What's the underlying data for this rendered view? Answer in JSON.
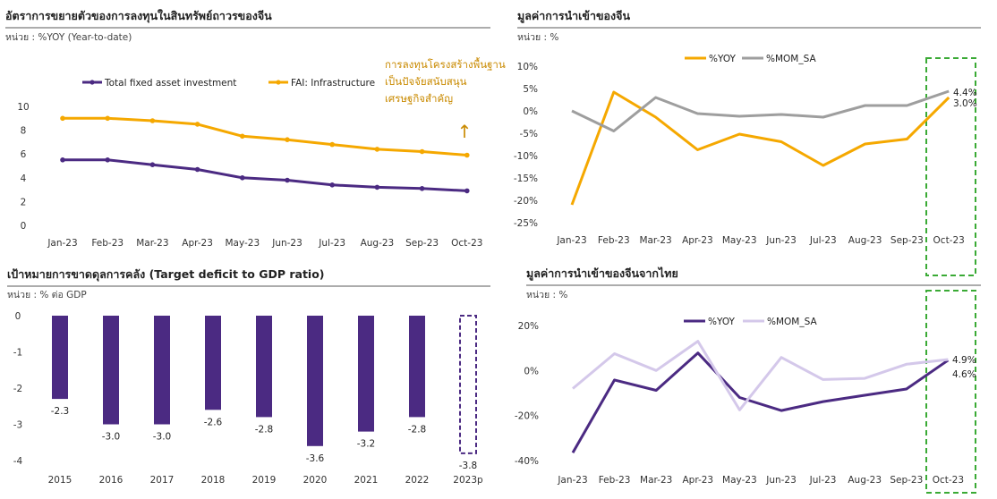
{
  "colors": {
    "purple": "#4b2a82",
    "orange": "#f5a800",
    "gray": "#9e9e9e",
    "lavender": "#d4c8ea",
    "green_highlight": "#3aaa35",
    "annotation": "#c98a00"
  },
  "chart_data": [
    {
      "id": "fai",
      "type": "line",
      "title": "อัตราการขยายตัวของการลงทุนในสินทรัพย์ถาวรของจีน",
      "unit_label": "หน่วย : %YOY (Year-to-date)",
      "categories": [
        "Jan-23",
        "Feb-23",
        "Mar-23",
        "Apr-23",
        "May-23",
        "Jun-23",
        "Jul-23",
        "Aug-23",
        "Sep-23",
        "Oct-23"
      ],
      "ylim": [
        0,
        10
      ],
      "yticks": [
        "0",
        "2",
        "4",
        "6",
        "8",
        "10"
      ],
      "series": [
        {
          "name": "Total fixed asset investment",
          "color": "#4b2a82",
          "values": [
            5.5,
            5.5,
            5.1,
            4.7,
            4.0,
            3.8,
            3.4,
            3.2,
            3.1,
            2.9
          ]
        },
        {
          "name": "FAI: Infrastructure",
          "color": "#f5a800",
          "values": [
            9.0,
            9.0,
            8.8,
            8.5,
            7.5,
            7.2,
            6.8,
            6.4,
            6.2,
            5.9
          ]
        }
      ],
      "annotation": [
        "การลงทุนโครงสร้างพื้นฐาน",
        "เป็นปัจจัยสนับสนุน",
        "เศรษฐกิจสำคัญ"
      ],
      "arrow": "↑",
      "legend": "top",
      "grid": false
    },
    {
      "id": "imports",
      "type": "line",
      "title": "มูลค่าการนำเข้าของจีน",
      "unit_label": "หน่วย : %",
      "categories": [
        "Jan-23",
        "Feb-23",
        "Mar-23",
        "Apr-23",
        "May-23",
        "Jun-23",
        "Jul-23",
        "Aug-23",
        "Sep-23",
        "Oct-23"
      ],
      "ylim": [
        -25,
        10
      ],
      "yticks": [
        "-25%",
        "-20%",
        "-15%",
        "-10%",
        "-5%",
        "0%",
        "5%",
        "10%"
      ],
      "series": [
        {
          "name": "%YOY",
          "color": "#f5a800",
          "values": [
            -21.0,
            4.2,
            -1.4,
            -8.7,
            -5.2,
            -6.9,
            -12.2,
            -7.4,
            -6.3,
            3.0
          ]
        },
        {
          "name": "%MOM_SA",
          "color": "#9e9e9e",
          "values": [
            0.0,
            -4.5,
            3.0,
            -0.6,
            -1.2,
            -0.8,
            -1.4,
            1.2,
            1.2,
            4.4
          ]
        }
      ],
      "end_labels": [
        "4.4%",
        "3.0%"
      ],
      "legend": "top",
      "grid": false
    },
    {
      "id": "deficit",
      "type": "bar",
      "title": "เป้าหมายการขาดดุลการคลัง (Target deficit to GDP ratio)",
      "unit_label": "หน่วย : % ต่อ GDP",
      "categories": [
        "2015",
        "2016",
        "2017",
        "2018",
        "2019",
        "2020",
        "2021",
        "2022",
        "2023p"
      ],
      "values": [
        -2.3,
        -3.0,
        -3.0,
        -2.6,
        -2.8,
        -3.6,
        -3.2,
        -2.8,
        -3.8
      ],
      "value_labels": [
        "-2.3",
        "-3.0",
        "-3.0",
        "-2.6",
        "-2.8",
        "-3.6",
        "-3.2",
        "-2.8",
        "-3.8"
      ],
      "ylim": [
        -4,
        0
      ],
      "yticks": [
        "-4",
        "-3",
        "-2",
        "-1",
        "0"
      ],
      "color": "#4b2a82",
      "projected_style": "dashed outline",
      "grid": false
    },
    {
      "id": "imports_thai",
      "type": "line",
      "title": "มูลค่าการนำเข้าของจีนจากไทย",
      "unit_label": "หน่วย : %",
      "categories": [
        "Jan-23",
        "Feb-23",
        "Mar-23",
        "Apr-23",
        "May-23",
        "Jun-23",
        "Jul-23",
        "Aug-23",
        "Sep-23",
        "Oct-23"
      ],
      "ylim": [
        -40,
        20
      ],
      "yticks": [
        "-40%",
        "-20%",
        "0%",
        "20%"
      ],
      "series": [
        {
          "name": "%YOY",
          "color": "#4b2a82",
          "values": [
            -36.5,
            -4.2,
            -8.8,
            7.8,
            -12.0,
            -17.8,
            -13.8,
            -11.0,
            -8.2,
            4.6
          ]
        },
        {
          "name": "%MOM_SA",
          "color": "#d4c8ea",
          "values": [
            -8.0,
            7.5,
            0.0,
            13.0,
            -17.5,
            5.8,
            -4.0,
            -3.5,
            2.8,
            4.9
          ]
        }
      ],
      "end_labels": [
        "4.9%",
        "4.6%"
      ],
      "legend": "top",
      "grid": false
    }
  ]
}
